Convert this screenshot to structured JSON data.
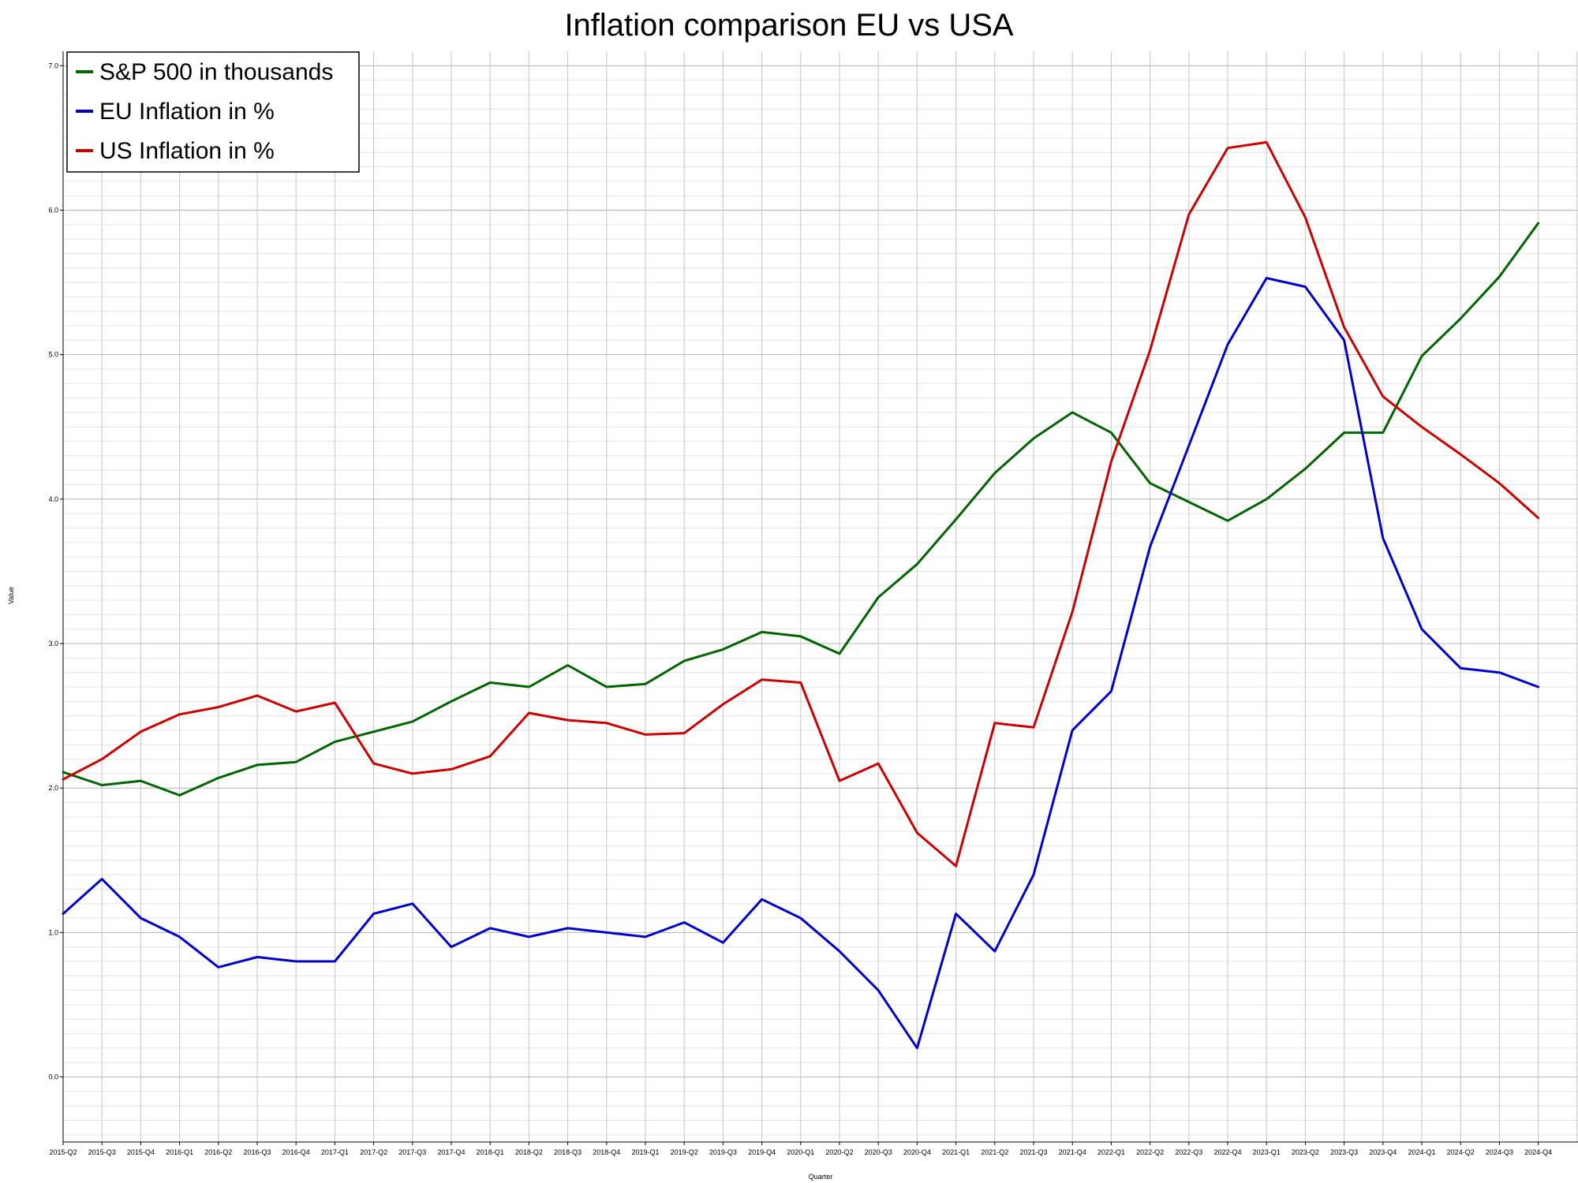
{
  "chart_data": {
    "type": "line",
    "title": "Inflation comparison EU vs USA",
    "xlabel": "Quarter",
    "ylabel": "Value",
    "ylim": [
      -0.45,
      7.1
    ],
    "yticks": [
      "0.0",
      "1.0",
      "2.0",
      "3.0",
      "4.0",
      "5.0",
      "6.0",
      "7.0"
    ],
    "grid": true,
    "legend_position": "top-left",
    "categories": [
      "2015-Q2",
      "2015-Q3",
      "2015-Q4",
      "2016-Q1",
      "2016-Q2",
      "2016-Q3",
      "2016-Q4",
      "2017-Q1",
      "2017-Q2",
      "2017-Q3",
      "2017-Q4",
      "2018-Q1",
      "2018-Q2",
      "2018-Q3",
      "2018-Q4",
      "2019-Q1",
      "2019-Q2",
      "2019-Q3",
      "2019-Q4",
      "2020-Q1",
      "2020-Q2",
      "2020-Q3",
      "2020-Q4",
      "2021-Q1",
      "2021-Q2",
      "2021-Q3",
      "2021-Q4",
      "2022-Q1",
      "2022-Q2",
      "2022-Q3",
      "2022-Q4",
      "2023-Q1",
      "2023-Q2",
      "2023-Q3",
      "2023-Q4",
      "2024-Q1",
      "2024-Q2",
      "2024-Q3",
      "2024-Q4"
    ],
    "series": [
      {
        "name": "S&P 500 in thousands",
        "color": "#006400",
        "values": [
          2.11,
          2.02,
          2.05,
          1.95,
          2.07,
          2.16,
          2.18,
          2.32,
          2.39,
          2.46,
          2.6,
          2.73,
          2.7,
          2.85,
          2.7,
          2.72,
          2.88,
          2.96,
          3.08,
          3.05,
          2.93,
          3.32,
          3.55,
          3.86,
          4.18,
          4.42,
          4.6,
          4.46,
          4.11,
          3.98,
          3.85,
          4.0,
          4.21,
          4.46,
          4.46,
          4.99,
          5.25,
          5.54,
          5.91
        ]
      },
      {
        "name": "EU Inflation in %",
        "color": "#0000cc",
        "values": [
          1.13,
          1.37,
          1.1,
          0.97,
          0.76,
          0.83,
          0.8,
          0.8,
          1.13,
          1.2,
          0.9,
          1.03,
          0.97,
          1.03,
          1.0,
          0.97,
          1.07,
          0.93,
          1.23,
          1.1,
          0.87,
          0.6,
          0.2,
          1.13,
          0.87,
          1.4,
          2.4,
          2.67,
          3.67,
          4.37,
          5.07,
          5.53,
          5.47,
          5.1,
          3.73,
          3.1,
          2.83,
          2.8,
          2.7
        ]
      },
      {
        "name": "US Inflation in %",
        "color": "#cc0000",
        "values": [
          2.06,
          2.2,
          2.39,
          2.51,
          2.56,
          2.64,
          2.53,
          2.59,
          2.17,
          2.1,
          2.13,
          2.22,
          2.52,
          2.47,
          2.45,
          2.37,
          2.38,
          2.58,
          2.75,
          2.73,
          2.05,
          2.17,
          1.69,
          1.46,
          2.45,
          2.42,
          3.22,
          4.26,
          5.03,
          5.97,
          6.43,
          6.47,
          5.95,
          5.19,
          4.71,
          4.5,
          4.31,
          4.11,
          3.87
        ]
      }
    ]
  }
}
